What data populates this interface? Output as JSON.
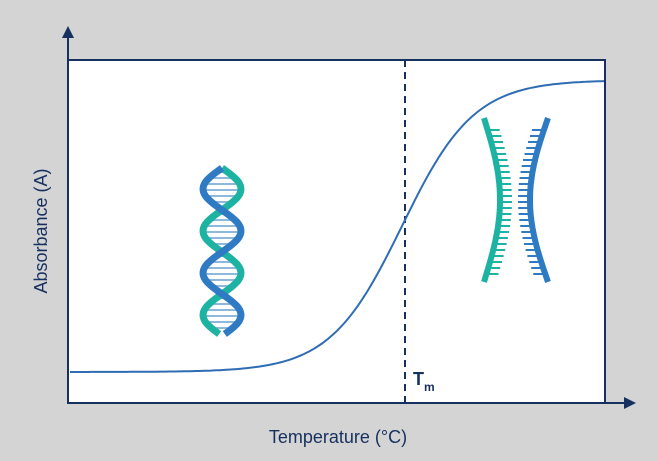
{
  "axes": {
    "y_label": "Absorbance (A)",
    "x_label": "Temperature (°C)"
  },
  "marker": {
    "label": "T",
    "subscript": "m"
  }
}
